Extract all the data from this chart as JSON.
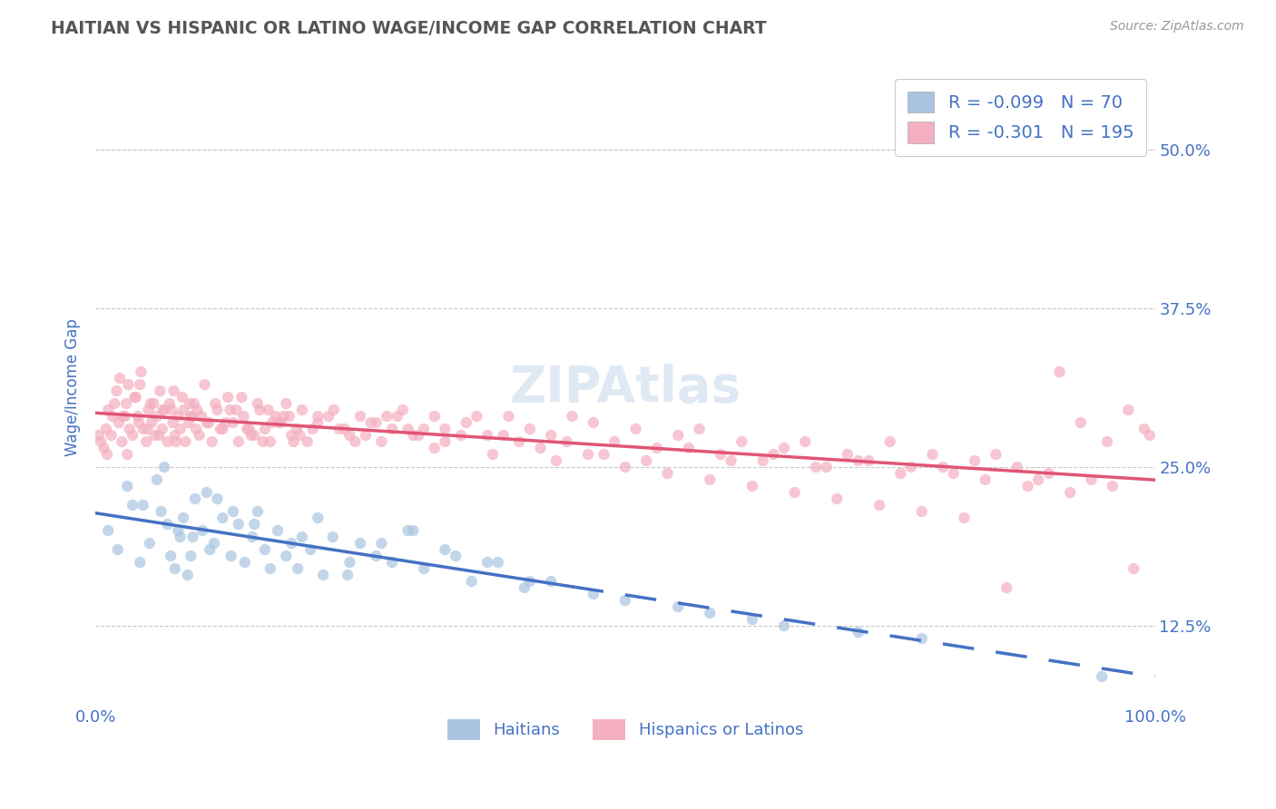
{
  "title": "HAITIAN VS HISPANIC OR LATINO WAGE/INCOME GAP CORRELATION CHART",
  "source": "Source: ZipAtlas.com",
  "ylabel": "Wage/Income Gap",
  "xlim": [
    0.0,
    100.0
  ],
  "ylim": [
    6.25,
    56.25
  ],
  "yticks": [
    12.5,
    25.0,
    37.5,
    50.0
  ],
  "xticks": [
    0.0,
    100.0
  ],
  "xtick_labels": [
    "0.0%",
    "100.0%"
  ],
  "ytick_labels": [
    "12.5%",
    "25.0%",
    "37.5%",
    "50.0%"
  ],
  "background_color": "#ffffff",
  "grid_color": "#c8c8c8",
  "title_color": "#555555",
  "axis_color": "#4472c4",
  "watermark": "ZIPAtlas",
  "series": [
    {
      "name": "Haitians",
      "R": -0.099,
      "N": 70,
      "color": "#aac4e0",
      "line_color": "#4472c4",
      "marker_size": 80,
      "alpha": 0.7
    },
    {
      "name": "Hispanics or Latinos",
      "R": -0.301,
      "N": 195,
      "color": "#f4afc0",
      "line_color": "#e05575",
      "marker_size": 80,
      "alpha": 0.7
    }
  ],
  "haitian_x": [
    1.2,
    2.1,
    3.5,
    4.2,
    5.1,
    5.8,
    6.2,
    6.8,
    7.1,
    7.5,
    8.0,
    8.3,
    8.7,
    9.0,
    9.4,
    10.1,
    10.5,
    11.2,
    12.0,
    12.8,
    13.5,
    14.1,
    14.8,
    15.3,
    16.0,
    17.2,
    18.5,
    19.1,
    20.3,
    21.0,
    22.4,
    23.8,
    25.0,
    26.5,
    28.0,
    29.5,
    31.0,
    33.0,
    35.5,
    38.0,
    40.5,
    43.0,
    47.0,
    50.0,
    55.0,
    58.0,
    62.0,
    65.0,
    72.0,
    78.0,
    3.0,
    4.5,
    6.5,
    7.8,
    9.2,
    10.8,
    11.5,
    13.0,
    15.0,
    16.5,
    18.0,
    19.5,
    21.5,
    24.0,
    27.0,
    30.0,
    34.0,
    37.0,
    41.0,
    95.0
  ],
  "haitian_y": [
    20.0,
    18.5,
    22.0,
    17.5,
    19.0,
    24.0,
    21.5,
    20.5,
    18.0,
    17.0,
    19.5,
    21.0,
    16.5,
    18.0,
    22.5,
    20.0,
    23.0,
    19.0,
    21.0,
    18.0,
    20.5,
    17.5,
    19.5,
    21.5,
    18.5,
    20.0,
    19.0,
    17.0,
    18.5,
    21.0,
    19.5,
    16.5,
    19.0,
    18.0,
    17.5,
    20.0,
    17.0,
    18.5,
    16.0,
    17.5,
    15.5,
    16.0,
    15.0,
    14.5,
    14.0,
    13.5,
    13.0,
    12.5,
    12.0,
    11.5,
    23.5,
    22.0,
    25.0,
    20.0,
    19.5,
    18.5,
    22.5,
    21.5,
    20.5,
    17.0,
    18.0,
    19.5,
    16.5,
    17.5,
    19.0,
    20.0,
    18.0,
    17.5,
    16.0,
    8.5
  ],
  "hispanic_x": [
    0.5,
    0.8,
    1.0,
    1.2,
    1.5,
    1.8,
    2.0,
    2.2,
    2.5,
    2.8,
    3.0,
    3.2,
    3.5,
    3.8,
    4.0,
    4.2,
    4.5,
    4.8,
    5.0,
    5.3,
    5.5,
    5.8,
    6.0,
    6.3,
    6.5,
    6.8,
    7.0,
    7.3,
    7.5,
    7.8,
    8.0,
    8.3,
    8.5,
    8.8,
    9.0,
    9.3,
    9.5,
    9.8,
    10.0,
    10.5,
    11.0,
    11.5,
    12.0,
    12.5,
    13.0,
    13.5,
    14.0,
    14.5,
    15.0,
    15.5,
    16.0,
    16.5,
    17.0,
    17.5,
    18.0,
    18.5,
    19.0,
    19.5,
    20.0,
    21.0,
    22.0,
    23.0,
    24.0,
    25.0,
    26.0,
    27.0,
    28.0,
    29.0,
    30.0,
    31.0,
    32.0,
    33.0,
    35.0,
    37.0,
    39.0,
    41.0,
    43.0,
    45.0,
    47.0,
    49.0,
    51.0,
    53.0,
    55.0,
    57.0,
    59.0,
    61.0,
    63.0,
    65.0,
    67.0,
    69.0,
    71.0,
    73.0,
    75.0,
    77.0,
    79.0,
    81.0,
    83.0,
    85.0,
    87.0,
    89.0,
    2.3,
    3.1,
    4.3,
    5.2,
    6.1,
    7.2,
    8.2,
    9.1,
    10.3,
    11.3,
    12.3,
    13.3,
    14.3,
    15.3,
    16.3,
    17.3,
    18.3,
    19.3,
    20.5,
    22.5,
    24.5,
    26.5,
    28.5,
    30.5,
    33.0,
    36.0,
    38.5,
    42.0,
    44.5,
    48.0,
    52.0,
    56.0,
    60.0,
    64.0,
    68.0,
    72.0,
    76.0,
    80.0,
    84.0,
    88.0,
    90.0,
    92.0,
    94.0,
    96.0,
    98.0,
    0.3,
    1.1,
    2.6,
    3.7,
    4.9,
    6.4,
    7.6,
    8.9,
    10.7,
    12.7,
    14.7,
    16.7,
    18.7,
    21.0,
    23.5,
    25.5,
    27.5,
    29.5,
    32.0,
    34.5,
    37.5,
    40.0,
    43.5,
    46.5,
    50.0,
    54.0,
    58.0,
    62.0,
    66.0,
    70.0,
    74.0,
    78.0,
    82.0,
    86.0,
    91.0,
    93.0,
    95.5,
    97.5,
    99.0,
    99.5,
    1.6,
    2.9,
    4.1,
    5.6,
    7.4,
    9.6,
    11.8,
    13.8,
    15.8,
    17.8
  ],
  "hispanic_y": [
    27.0,
    26.5,
    28.0,
    29.5,
    27.5,
    30.0,
    31.0,
    28.5,
    27.0,
    29.0,
    26.0,
    28.0,
    27.5,
    30.5,
    29.0,
    31.5,
    28.0,
    27.0,
    29.5,
    28.5,
    30.0,
    29.0,
    27.5,
    28.0,
    29.5,
    27.0,
    30.0,
    28.5,
    27.5,
    29.0,
    28.0,
    29.5,
    27.0,
    28.5,
    29.0,
    30.0,
    28.0,
    27.5,
    29.0,
    28.5,
    27.0,
    29.5,
    28.0,
    30.5,
    28.5,
    27.0,
    29.0,
    28.0,
    27.5,
    29.5,
    28.0,
    27.0,
    29.0,
    28.5,
    30.0,
    27.5,
    28.0,
    29.5,
    27.0,
    28.5,
    29.0,
    28.0,
    27.5,
    29.0,
    28.5,
    27.0,
    28.0,
    29.5,
    27.5,
    28.0,
    29.0,
    27.0,
    28.5,
    27.5,
    29.0,
    28.0,
    27.5,
    29.0,
    28.5,
    27.0,
    28.0,
    26.5,
    27.5,
    28.0,
    26.0,
    27.0,
    25.5,
    26.5,
    27.0,
    25.0,
    26.0,
    25.5,
    27.0,
    25.0,
    26.0,
    24.5,
    25.5,
    26.0,
    25.0,
    24.0,
    32.0,
    31.5,
    32.5,
    30.0,
    31.0,
    29.5,
    30.5,
    29.0,
    31.5,
    30.0,
    28.5,
    29.5,
    28.0,
    30.0,
    29.5,
    28.5,
    29.0,
    27.5,
    28.0,
    29.5,
    27.0,
    28.5,
    29.0,
    27.5,
    28.0,
    29.0,
    27.5,
    26.5,
    27.0,
    26.0,
    25.5,
    26.5,
    25.5,
    26.0,
    25.0,
    25.5,
    24.5,
    25.0,
    24.0,
    23.5,
    24.5,
    23.0,
    24.0,
    23.5,
    17.0,
    27.5,
    26.0,
    29.0,
    30.5,
    28.0,
    29.5,
    27.0,
    30.0,
    28.5,
    29.5,
    27.5,
    28.5,
    27.0,
    29.0,
    28.0,
    27.5,
    29.0,
    28.0,
    26.5,
    27.5,
    26.0,
    27.0,
    25.5,
    26.0,
    25.0,
    24.5,
    24.0,
    23.5,
    23.0,
    22.5,
    22.0,
    21.5,
    21.0,
    15.5,
    32.5,
    28.5,
    27.0,
    29.5,
    28.0,
    27.5,
    29.0,
    30.0,
    28.5,
    27.5,
    31.0,
    29.5,
    28.0,
    30.5,
    27.0,
    29.0
  ]
}
